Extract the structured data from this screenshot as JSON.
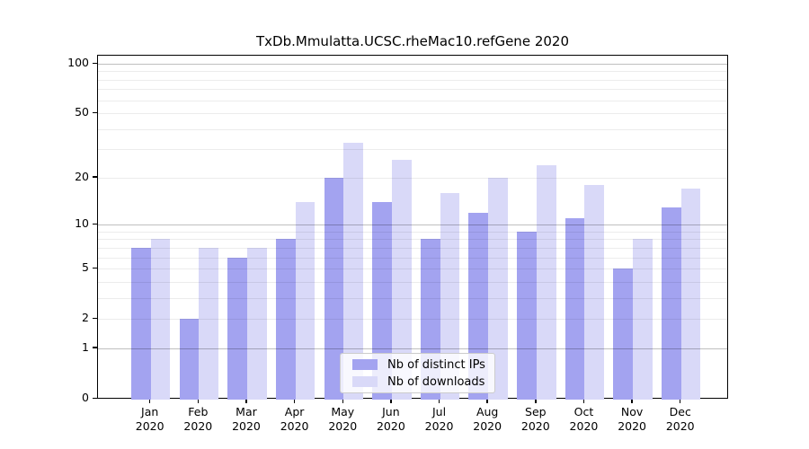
{
  "title": "TxDb.Mmulatta.UCSC.rheMac10.refGene 2020",
  "chart_data": {
    "type": "bar",
    "title": "TxDb.Mmulatta.UCSC.rheMac10.refGene 2020",
    "categories": [
      "Jan",
      "Feb",
      "Mar",
      "Apr",
      "May",
      "Jun",
      "Jul",
      "Aug",
      "Sep",
      "Oct",
      "Nov",
      "Dec"
    ],
    "category_year": "2020",
    "series": [
      {
        "name": "Nb of distinct IPs",
        "color": "#a3a3f0",
        "values": [
          7,
          2,
          6,
          8,
          20,
          14,
          8,
          12,
          9,
          11,
          5,
          13
        ]
      },
      {
        "name": "Nb of downloads",
        "color": "#d9d9f8",
        "values": [
          8,
          7,
          7,
          14,
          33,
          26,
          16,
          20,
          24,
          18,
          8,
          17
        ]
      }
    ],
    "xlabel": "",
    "ylabel": "",
    "y_scale": "log1p",
    "ylim": [
      0,
      100
    ],
    "y_ticks": [
      0,
      1,
      2,
      5,
      10,
      20,
      50,
      100
    ],
    "y_gridlines_minor": [
      2,
      3,
      4,
      5,
      6,
      7,
      8,
      9,
      20,
      30,
      40,
      50,
      60,
      70,
      80,
      90
    ],
    "y_gridlines_major": [
      1,
      10,
      100
    ],
    "grid": true,
    "legend_position": "lower center"
  },
  "colors": {
    "distinct_ips": "#a3a3f0",
    "downloads": "#d9d9f8",
    "axis": "#000000",
    "gridline_minor": "#ebebeb",
    "gridline_major": "#bfbfbf",
    "legend_border": "#cccccc"
  }
}
